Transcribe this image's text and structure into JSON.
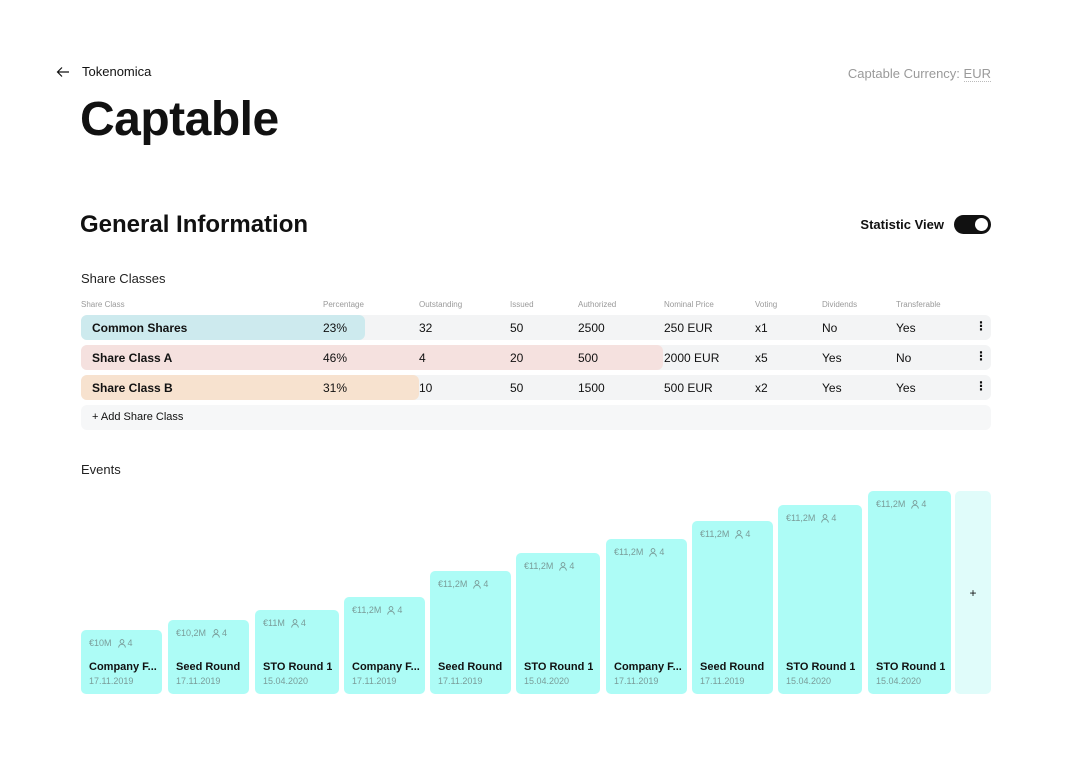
{
  "header": {
    "back_label": "Tokenomica",
    "currency_label": "Captable Currency:",
    "currency_value": "EUR"
  },
  "page_title": "Captable",
  "section": {
    "title": "General Information",
    "stat_view_label": "Statistic View",
    "stat_view_on": true
  },
  "share_classes": {
    "heading": "Share Classes",
    "columns": [
      "Share Class",
      "Percentage",
      "Outstanding",
      "Issued",
      "Authorized",
      "Nominal Price",
      "Voting",
      "Dividends",
      "Transferable"
    ],
    "rows": [
      {
        "name": "Common Shares",
        "percentage": "23%",
        "outstanding": "32",
        "issued": "50",
        "authorized": "2500",
        "nominal_price": "250 EUR",
        "voting": "x1",
        "dividends": "No",
        "transferable": "Yes",
        "color": "#cdeaee",
        "menu_icon": "⋮"
      },
      {
        "name": "Share Class A",
        "percentage": "46%",
        "outstanding": "4",
        "issued": "20",
        "authorized": "500",
        "nominal_price": "2000 EUR",
        "voting": "x5",
        "dividends": "Yes",
        "transferable": "No",
        "color": "#f5e1df",
        "menu_icon": "⋮"
      },
      {
        "name": "Share Class B",
        "percentage": "31%",
        "outstanding": "10",
        "issued": "50",
        "authorized": "1500",
        "nominal_price": "500 EUR",
        "voting": "x2",
        "dividends": "Yes",
        "transferable": "Yes",
        "color": "#f7e2cf",
        "menu_icon": "⋮"
      }
    ],
    "add_label": "+ Add Share Class"
  },
  "events": {
    "heading": "Events",
    "items": [
      {
        "amount": "€10M",
        "investors": "4",
        "name": "Company F...",
        "date": "17.11.2019"
      },
      {
        "amount": "€10,2M",
        "investors": "4",
        "name": "Seed Round",
        "date": "17.11.2019"
      },
      {
        "amount": "€11M",
        "investors": "4",
        "name": "STO Round 1",
        "date": "15.04.2020"
      },
      {
        "amount": "€11,2M",
        "investors": "4",
        "name": "Company F...",
        "date": "17.11.2019"
      },
      {
        "amount": "€11,2M",
        "investors": "4",
        "name": "Seed Round",
        "date": "17.11.2019"
      },
      {
        "amount": "€11,2M",
        "investors": "4",
        "name": "STO Round 1",
        "date": "15.04.2020"
      },
      {
        "amount": "€11,2M",
        "investors": "4",
        "name": "Company F...",
        "date": "17.11.2019"
      },
      {
        "amount": "€11,2M",
        "investors": "4",
        "name": "Seed Round",
        "date": "17.11.2019"
      },
      {
        "amount": "€11,2M",
        "investors": "4",
        "name": "STO Round 1",
        "date": "15.04.2020"
      },
      {
        "amount": "€11,2M",
        "investors": "4",
        "name": "STO Round 1",
        "date": "15.04.2020"
      }
    ],
    "add_label": "+"
  },
  "colors": {
    "event_card": "#adfcf6",
    "add_event": "#e0fcfa",
    "row_bg": "#f3f4f5"
  },
  "icons": {
    "back": "arrow-left-icon",
    "person": "person-icon",
    "menu": "more-vertical-icon"
  }
}
